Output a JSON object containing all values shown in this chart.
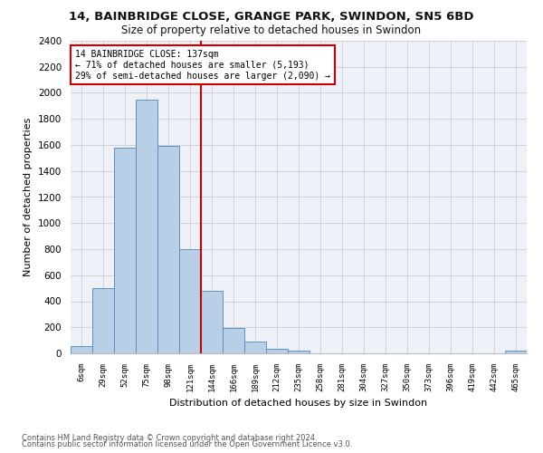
{
  "title1": "14, BAINBRIDGE CLOSE, GRANGE PARK, SWINDON, SN5 6BD",
  "title2": "Size of property relative to detached houses in Swindon",
  "xlabel": "Distribution of detached houses by size in Swindon",
  "ylabel": "Number of detached properties",
  "footer1": "Contains HM Land Registry data © Crown copyright and database right 2024.",
  "footer2": "Contains public sector information licensed under the Open Government Licence v3.0.",
  "annotation_line1": "14 BAINBRIDGE CLOSE: 137sqm",
  "annotation_line2": "← 71% of detached houses are smaller (5,193)",
  "annotation_line3": "29% of semi-detached houses are larger (2,090) →",
  "bar_categories": [
    "6sqm",
    "29sqm",
    "52sqm",
    "75sqm",
    "98sqm",
    "121sqm",
    "144sqm",
    "166sqm",
    "189sqm",
    "212sqm",
    "235sqm",
    "258sqm",
    "281sqm",
    "304sqm",
    "327sqm",
    "350sqm",
    "373sqm",
    "396sqm",
    "419sqm",
    "442sqm",
    "465sqm"
  ],
  "bar_values": [
    55,
    500,
    1580,
    1950,
    1590,
    800,
    480,
    195,
    90,
    35,
    20,
    0,
    0,
    0,
    0,
    0,
    0,
    0,
    0,
    0,
    20
  ],
  "bar_color": "#b8cfe8",
  "bar_edge_color": "#6090c0",
  "vline_x_index": 5.5,
  "vline_color": "#cc0000",
  "annotation_box_color": "#cc0000",
  "ylim": [
    0,
    2400
  ],
  "yticks": [
    0,
    200,
    400,
    600,
    800,
    1000,
    1200,
    1400,
    1600,
    1800,
    2000,
    2200,
    2400
  ],
  "grid_color": "#cccccc",
  "bg_color": "#eef2f8"
}
